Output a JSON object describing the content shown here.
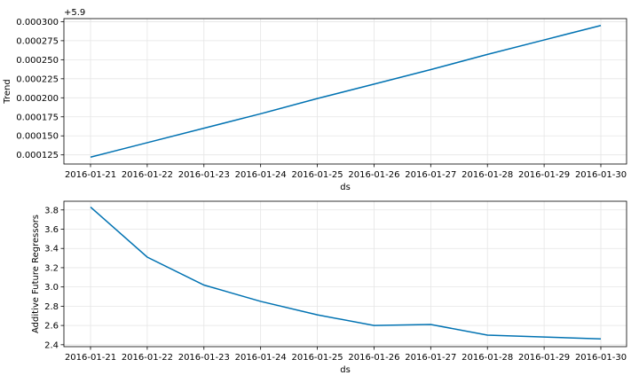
{
  "chart_data": [
    {
      "type": "line",
      "ylabel": "Trend",
      "xlabel": "ds",
      "offset_label": "+5.9",
      "color": "#0072b2",
      "x": [
        "2016-01-21",
        "2016-01-22",
        "2016-01-23",
        "2016-01-24",
        "2016-01-25",
        "2016-01-26",
        "2016-01-27",
        "2016-01-28",
        "2016-01-29",
        "2016-01-30"
      ],
      "values": [
        0.000122,
        0.000141,
        0.00016,
        0.000179,
        0.000199,
        0.000218,
        0.000237,
        0.000257,
        0.000276,
        0.000295
      ],
      "ylim": [
        0.000113,
        0.000304
      ],
      "yticks": [
        0.000125,
        0.00015,
        0.000175,
        0.0002,
        0.000225,
        0.00025,
        0.000275,
        0.0003
      ],
      "ytick_labels": [
        "0.000125",
        "0.000150",
        "0.000175",
        "0.000200",
        "0.000225",
        "0.000250",
        "0.000275",
        "0.000300"
      ],
      "grid": true
    },
    {
      "type": "line",
      "ylabel": "Additive Future Regressors",
      "xlabel": "ds",
      "color": "#0072b2",
      "x": [
        "2016-01-21",
        "2016-01-22",
        "2016-01-23",
        "2016-01-24",
        "2016-01-25",
        "2016-01-26",
        "2016-01-27",
        "2016-01-28",
        "2016-01-29",
        "2016-01-30"
      ],
      "values": [
        3.83,
        3.31,
        3.02,
        2.85,
        2.71,
        2.6,
        2.61,
        2.5,
        2.48,
        2.46
      ],
      "ylim": [
        2.38,
        3.89
      ],
      "yticks": [
        2.4,
        2.6,
        2.8,
        3.0,
        3.2,
        3.4,
        3.6,
        3.8
      ],
      "ytick_labels": [
        "2.4",
        "2.6",
        "2.8",
        "3.0",
        "3.2",
        "3.4",
        "3.6",
        "3.8"
      ],
      "grid": true
    }
  ]
}
